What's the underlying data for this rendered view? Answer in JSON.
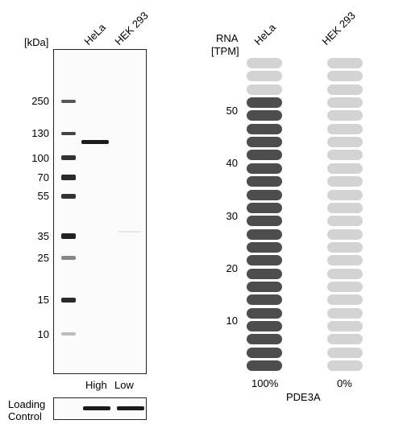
{
  "western_blot": {
    "unit_label": "[kDa]",
    "lanes": [
      "HeLa",
      "HEK 293"
    ],
    "markers": [
      "250",
      "130",
      "100",
      "70",
      "55",
      "35",
      "25",
      "15",
      "10"
    ],
    "lane_levels": [
      "High",
      "Low"
    ],
    "loading_control_line1": "Loading",
    "loading_control_line2": "Control"
  },
  "rna": {
    "title_line1": "RNA",
    "title_line2": "[TPM]",
    "cell_lines": [
      "HeLa",
      "HEK 293"
    ],
    "ticks": [
      "50",
      "40",
      "30",
      "20",
      "10"
    ],
    "percentages": [
      "100%",
      "0%"
    ],
    "gene": "PDE3A",
    "colors": {
      "filled": "#4d4d4d",
      "light": "#d3d3d3"
    },
    "columns": [
      {
        "name": "HeLa",
        "filled": 21,
        "total": 24
      },
      {
        "name": "HEK 293",
        "filled": 0,
        "total": 24
      }
    ]
  }
}
